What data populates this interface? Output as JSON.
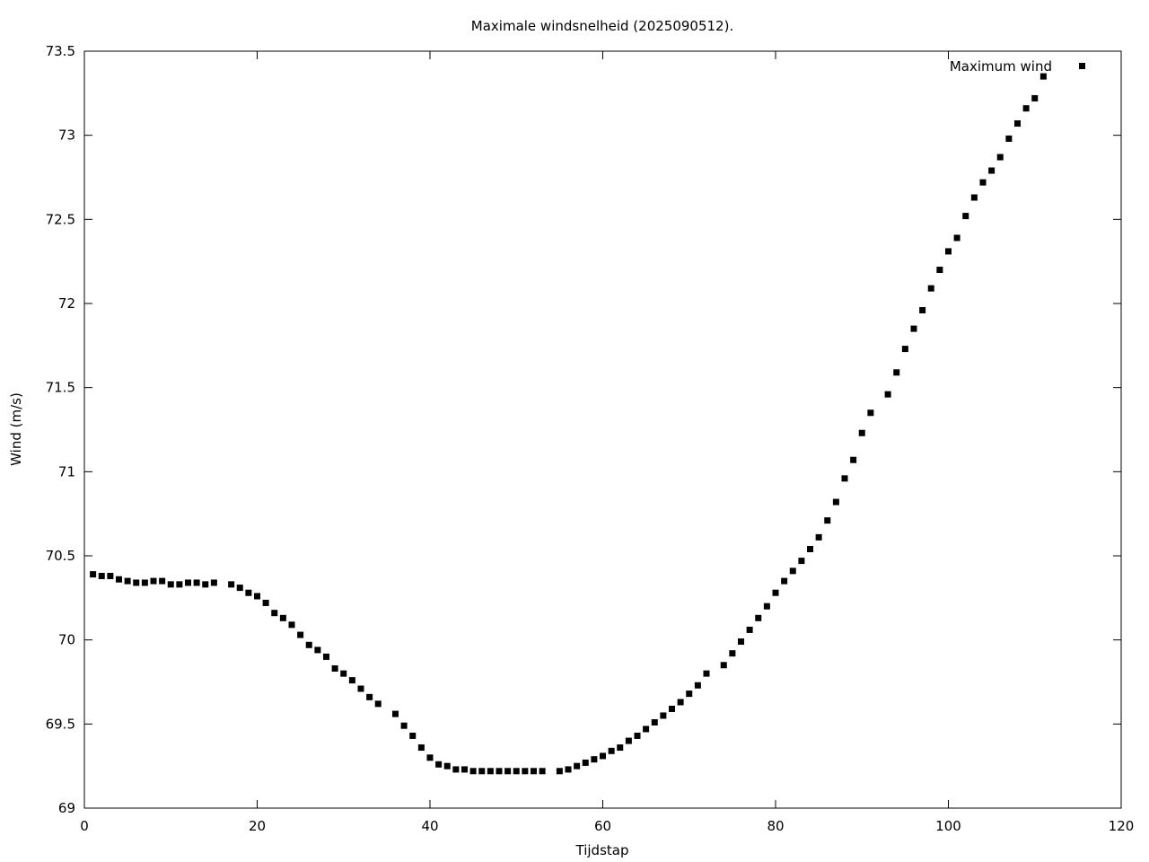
{
  "chart_data": {
    "type": "scatter",
    "title": "Maximale windsnelheid (2025090512).",
    "xlabel": "Tijdstap",
    "ylabel": "Wind (m/s)",
    "xlim": [
      0,
      120
    ],
    "ylim": [
      69,
      73.5
    ],
    "xticks": [
      0,
      20,
      40,
      60,
      80,
      100,
      120
    ],
    "yticks": [
      69,
      69.5,
      70,
      70.5,
      71,
      71.5,
      72,
      72.5,
      73,
      73.5
    ],
    "xtick_labels": [
      "0",
      "20",
      "40",
      "60",
      "80",
      "100",
      "120"
    ],
    "ytick_labels": [
      "69",
      "69.5",
      "70",
      "70.5",
      "71",
      "71.5",
      "72",
      "72.5",
      "73",
      "73.5"
    ],
    "grid": false,
    "legend_position": "top-right",
    "marker_color": "#000000",
    "series": [
      {
        "name": "Maximum wind",
        "x": [
          1,
          2,
          3,
          4,
          5,
          6,
          7,
          8,
          9,
          10,
          11,
          12,
          13,
          14,
          15,
          17,
          18,
          19,
          20,
          21,
          22,
          23,
          24,
          25,
          26,
          27,
          28,
          29,
          30,
          31,
          32,
          33,
          34,
          36,
          37,
          38,
          39,
          40,
          41,
          42,
          43,
          44,
          45,
          46,
          47,
          48,
          49,
          50,
          51,
          52,
          53,
          55,
          56,
          57,
          58,
          59,
          60,
          61,
          62,
          63,
          64,
          65,
          66,
          67,
          68,
          69,
          70,
          71,
          72,
          74,
          75,
          76,
          77,
          78,
          79,
          80,
          81,
          82,
          83,
          84,
          85,
          86,
          87,
          88,
          89,
          90,
          91,
          93,
          94,
          95,
          96,
          97,
          98,
          99,
          100,
          101,
          102,
          103,
          104,
          105,
          106,
          107,
          108,
          109,
          110,
          111
        ],
        "y": [
          70.39,
          70.38,
          70.38,
          70.36,
          70.35,
          70.34,
          70.34,
          70.35,
          70.35,
          70.33,
          70.33,
          70.34,
          70.34,
          70.33,
          70.34,
          70.33,
          70.31,
          70.28,
          70.26,
          70.22,
          70.16,
          70.13,
          70.09,
          70.03,
          69.97,
          69.94,
          69.9,
          69.83,
          69.8,
          69.76,
          69.71,
          69.66,
          69.62,
          69.56,
          69.49,
          69.43,
          69.36,
          69.3,
          69.26,
          69.25,
          69.23,
          69.23,
          69.22,
          69.22,
          69.22,
          69.22,
          69.22,
          69.22,
          69.22,
          69.22,
          69.22,
          69.22,
          69.23,
          69.25,
          69.27,
          69.29,
          69.31,
          69.34,
          69.36,
          69.4,
          69.43,
          69.47,
          69.51,
          69.55,
          69.59,
          69.63,
          69.68,
          69.73,
          69.8,
          69.85,
          69.92,
          69.99,
          70.06,
          70.13,
          70.2,
          70.28,
          70.35,
          70.41,
          70.47,
          70.54,
          70.61,
          70.71,
          70.82,
          70.96,
          71.07,
          71.23,
          71.35,
          71.46,
          71.59,
          71.73,
          71.85,
          71.96,
          72.09,
          72.2,
          72.31,
          72.39,
          72.52,
          72.63,
          72.72,
          72.79,
          72.87,
          72.98,
          73.07,
          73.16,
          73.22,
          73.35
        ]
      }
    ]
  }
}
